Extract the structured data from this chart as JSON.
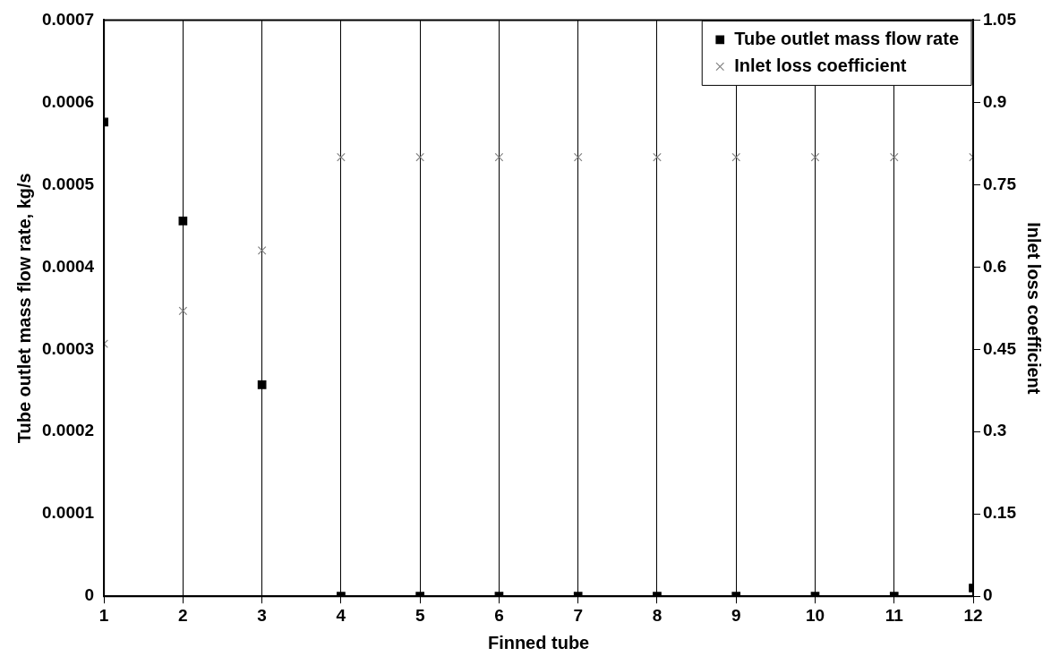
{
  "chart_data": {
    "type": "scatter",
    "xlabel": "Finned tube",
    "ylabel": "Tube outlet mass flow rate, kg/s",
    "y2label": "Inlet loss coefficient",
    "x": [
      1,
      2,
      3,
      4,
      5,
      6,
      7,
      8,
      9,
      10,
      11,
      12
    ],
    "series": [
      {
        "name": "Tube outlet mass flow rate",
        "color": "#000000",
        "marker": "square",
        "values": [
          0.000576,
          0.000456,
          0.000257,
          0,
          0,
          0,
          0,
          0,
          0,
          0,
          0,
          1e-05
        ]
      },
      {
        "name": "Inlet loss coefficient",
        "color": "#808080",
        "marker": "cross",
        "axis": "y2",
        "values": [
          0.46,
          0.52,
          0.63,
          0.8,
          0.8,
          0.8,
          0.8,
          0.8,
          0.8,
          0.8,
          0.8,
          0.8
        ]
      }
    ],
    "xlim": [
      1,
      12
    ],
    "xticks": [
      1,
      2,
      3,
      4,
      5,
      6,
      7,
      8,
      9,
      10,
      11,
      12
    ],
    "ylim": [
      0,
      0.0007
    ],
    "yticks": [
      0,
      0.0001,
      0.0002,
      0.0003,
      0.0004,
      0.0005,
      0.0006,
      0.0007
    ],
    "y2lim": [
      0,
      1.05
    ],
    "y2ticks": [
      0,
      0.15,
      0.3,
      0.45,
      0.6,
      0.75,
      0.9,
      1.05
    ],
    "grid": "x",
    "legend": "top right"
  }
}
